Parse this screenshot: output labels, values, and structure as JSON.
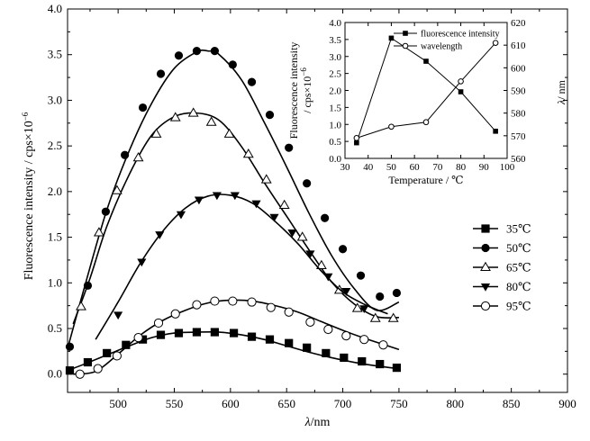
{
  "chart_data": [
    {
      "type": "line",
      "xlabel_symbol": "λ",
      "xlabel_unit": "/nm",
      "ylabel": "Fluorescence intensity / cps×10",
      "ylabel_exp": "−6",
      "xlim": [
        455,
        900
      ],
      "ylim": [
        -0.2,
        4.0
      ],
      "xticks": [
        500,
        550,
        600,
        650,
        700,
        750,
        800,
        850,
        900
      ],
      "yticks": [
        0.0,
        0.5,
        1.0,
        1.5,
        2.0,
        2.5,
        3.0,
        3.5,
        4.0
      ],
      "ytick_labels": [
        "0.0",
        "0.5",
        "1.0",
        "1.5",
        "2.0",
        "2.5",
        "3.0",
        "3.5",
        "4.0"
      ],
      "legend_position": "right",
      "series": [
        {
          "name": "35℃",
          "marker": "square-filled",
          "curve_x": [
            455,
            470,
            490,
            510,
            530,
            550,
            570,
            590,
            610,
            630,
            650,
            670,
            690,
            710,
            730,
            750
          ],
          "curve_y": [
            0.04,
            0.11,
            0.21,
            0.31,
            0.4,
            0.45,
            0.46,
            0.46,
            0.43,
            0.38,
            0.31,
            0.24,
            0.18,
            0.13,
            0.09,
            0.06
          ],
          "marker_x": [
            457,
            473,
            490,
            507,
            522,
            538,
            554,
            570,
            586,
            603,
            619,
            635,
            652,
            668,
            685,
            701,
            717,
            733,
            748
          ],
          "marker_y": [
            0.04,
            0.13,
            0.23,
            0.32,
            0.38,
            0.43,
            0.45,
            0.46,
            0.46,
            0.45,
            0.41,
            0.38,
            0.34,
            0.29,
            0.23,
            0.18,
            0.14,
            0.11,
            0.07
          ]
        },
        {
          "name": "50℃",
          "marker": "circle-filled",
          "curve_x": [
            455,
            470,
            490,
            510,
            530,
            550,
            570,
            580,
            590,
            610,
            630,
            650,
            670,
            690,
            710,
            730,
            750
          ],
          "curve_y": [
            0.28,
            0.95,
            1.8,
            2.45,
            2.97,
            3.35,
            3.53,
            3.54,
            3.5,
            3.22,
            2.76,
            2.27,
            1.76,
            1.3,
            0.94,
            0.7,
            0.79
          ],
          "marker_x": [
            457,
            473,
            489,
            506,
            522,
            538,
            554,
            570,
            586,
            602,
            619,
            635,
            652,
            668,
            684,
            700,
            716,
            733,
            748
          ],
          "marker_y": [
            0.3,
            0.97,
            1.78,
            2.4,
            2.92,
            3.29,
            3.49,
            3.54,
            3.54,
            3.39,
            3.2,
            2.84,
            2.48,
            2.09,
            1.71,
            1.37,
            1.08,
            0.85,
            0.89
          ]
        },
        {
          "name": "65℃",
          "marker": "triangle-up-open",
          "curve_x": [
            460,
            475,
            490,
            510,
            530,
            550,
            570,
            590,
            610,
            630,
            650,
            670,
            690,
            710,
            730,
            750
          ],
          "curve_y": [
            0.55,
            1.05,
            1.62,
            2.19,
            2.62,
            2.82,
            2.86,
            2.78,
            2.49,
            2.1,
            1.73,
            1.36,
            1.01,
            0.77,
            0.63,
            0.62
          ],
          "marker_x": [
            467,
            483,
            499,
            518,
            534,
            551,
            567,
            583,
            599,
            616,
            632,
            648,
            664,
            681,
            697,
            713,
            729,
            745
          ],
          "marker_y": [
            0.74,
            1.55,
            2.01,
            2.37,
            2.63,
            2.81,
            2.86,
            2.76,
            2.63,
            2.41,
            2.13,
            1.85,
            1.5,
            1.19,
            0.92,
            0.72,
            0.61,
            0.61
          ]
        },
        {
          "name": "80℃",
          "marker": "triangle-down-filled",
          "curve_x": [
            480,
            500,
            520,
            540,
            560,
            580,
            600,
            620,
            640,
            660,
            680,
            700,
            720,
            740
          ],
          "curve_y": [
            0.38,
            0.79,
            1.22,
            1.57,
            1.82,
            1.95,
            1.96,
            1.87,
            1.67,
            1.43,
            1.14,
            0.9,
            0.76,
            0.66
          ],
          "marker_x": [
            500,
            521,
            537,
            556,
            572,
            588,
            604,
            623,
            639,
            655,
            671,
            687,
            703,
            719
          ],
          "marker_y": [
            0.65,
            1.23,
            1.53,
            1.75,
            1.91,
            1.96,
            1.96,
            1.87,
            1.72,
            1.55,
            1.32,
            1.07,
            0.91,
            0.72
          ]
        },
        {
          "name": "95℃",
          "marker": "circle-open",
          "curve_x": [
            460,
            480,
            500,
            520,
            540,
            560,
            580,
            600,
            620,
            640,
            660,
            680,
            700,
            720,
            740,
            750
          ],
          "curve_y": [
            0.0,
            0.03,
            0.22,
            0.43,
            0.59,
            0.7,
            0.78,
            0.81,
            0.8,
            0.75,
            0.68,
            0.58,
            0.48,
            0.39,
            0.31,
            0.27
          ],
          "marker_x": [
            466,
            482,
            499,
            518,
            536,
            551,
            570,
            586,
            602,
            619,
            636,
            652,
            671,
            687,
            703,
            719,
            736
          ],
          "marker_y": [
            0.0,
            0.06,
            0.2,
            0.4,
            0.56,
            0.66,
            0.76,
            0.8,
            0.8,
            0.79,
            0.73,
            0.68,
            0.57,
            0.49,
            0.42,
            0.38,
            0.32
          ]
        }
      ]
    },
    {
      "type": "line",
      "xlabel": "Temperature / ℃",
      "ylabel_left": "Fluorescence intensity",
      "ylabel_left2": "/ cps×10",
      "ylabel_left2_exp": "−6",
      "ylabel_right_symbol": "λ",
      "ylabel_right_unit": "/ nm",
      "xlim": [
        30,
        100
      ],
      "ylim_left": [
        0,
        4.0
      ],
      "ylim_right": [
        560,
        620
      ],
      "xticks": [
        30,
        40,
        50,
        60,
        70,
        80,
        90,
        100
      ],
      "yticks_left": [
        0.0,
        0.5,
        1.0,
        1.5,
        2.0,
        2.5,
        3.0,
        3.5,
        4.0
      ],
      "yticks_left_labels": [
        "0.0",
        "0.5",
        "1.0",
        "1.5",
        "2.0",
        "2.5",
        "3.0",
        "3.5",
        "4.0"
      ],
      "yticks_right": [
        560,
        570,
        580,
        590,
        600,
        610,
        620
      ],
      "legend_position": "top-left",
      "series": [
        {
          "name": "fluorescence intensity",
          "axis": "left",
          "marker": "square-filled",
          "x": [
            35,
            50,
            65,
            80,
            95
          ],
          "y": [
            0.46,
            3.54,
            2.86,
            1.96,
            0.8
          ]
        },
        {
          "name": "wavelength",
          "axis": "right",
          "marker": "circle-open",
          "x": [
            35,
            50,
            65,
            80,
            95
          ],
          "y": [
            569,
            574,
            576,
            594,
            611
          ]
        }
      ]
    }
  ]
}
